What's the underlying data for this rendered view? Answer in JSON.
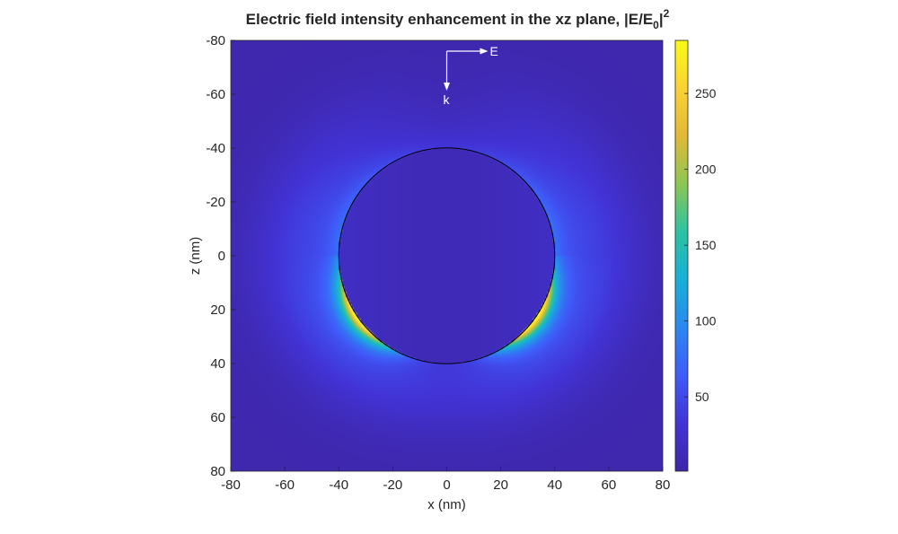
{
  "chart_data": {
    "type": "heatmap",
    "title": "Electric field intensity enhancement in the xz plane, |E/E",
    "title_subscript": "0",
    "title_bar": "|",
    "title_superscript": "2",
    "xlabel": "x (nm)",
    "ylabel": "z (nm)",
    "xlim": [
      -80,
      80
    ],
    "ylim": [
      -80,
      80
    ],
    "y_axis_direction": "reversed",
    "xticks": [
      -80,
      -60,
      -40,
      -20,
      0,
      20,
      40,
      60,
      80
    ],
    "yticks": [
      -80,
      -60,
      -40,
      -20,
      0,
      20,
      40,
      60,
      80
    ],
    "xtick_labels": [
      "-80",
      "-60",
      "-40",
      "-20",
      "0",
      "20",
      "40",
      "60",
      "80"
    ],
    "ytick_labels": [
      "-80",
      "-60",
      "-40",
      "-20",
      "0",
      "20",
      "40",
      "60",
      "80"
    ],
    "colormap": "parula",
    "clim": [
      1,
      285
    ],
    "colorbar_ticks": [
      50,
      100,
      150,
      200,
      250
    ],
    "colorbar_tick_labels": [
      "50",
      "100",
      "150",
      "200",
      "250"
    ],
    "colorbar_location": "right",
    "particle_outline": {
      "center_x": 0,
      "center_z": 0,
      "radius": 40,
      "color": "#000000"
    },
    "field_description": {
      "background_value": 5,
      "max_value": 285,
      "hotspot_region": "lower half of particle boundary, peaks near angle ~45 deg below horizontal on both sides"
    },
    "annotations": {
      "E_label": "E",
      "k_label": "k",
      "E_direction": "+x",
      "k_direction": "+z",
      "origin_x": 0,
      "origin_z": -76
    }
  },
  "colors": {
    "colormap_stops": [
      "#3e26a8",
      "#4233d6",
      "#3f5bf9",
      "#2b88f0",
      "#17b0d7",
      "#2cc2a3",
      "#8dc653",
      "#e2b936",
      "#fbd236",
      "#f9fb15"
    ],
    "background": "#ffffff",
    "text": "#262626"
  }
}
